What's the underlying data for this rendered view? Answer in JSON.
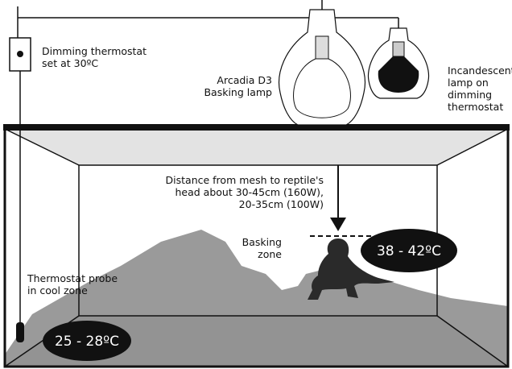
{
  "thermostat": {
    "lines": [
      "Dimming thermostat",
      "set at 30ºC"
    ]
  },
  "basking_lamp": {
    "lines": [
      "Arcadia D3",
      "Basking lamp"
    ]
  },
  "incandescent_lamp": {
    "lines": [
      "Incandescent",
      "lamp on",
      "dimming",
      "thermostat"
    ]
  },
  "distance_note": {
    "lines": [
      "Distance from mesh to reptile's",
      "head about 30-45cm (160W),",
      "20-35cm (100W)"
    ]
  },
  "basking_zone": {
    "lines": [
      "Basking",
      "zone"
    ],
    "temperature": "38 - 42ºC"
  },
  "cool_zone": {
    "lines": [
      "Thermostat probe",
      "in cool zone"
    ],
    "temperature": "25 - 28ºC"
  }
}
